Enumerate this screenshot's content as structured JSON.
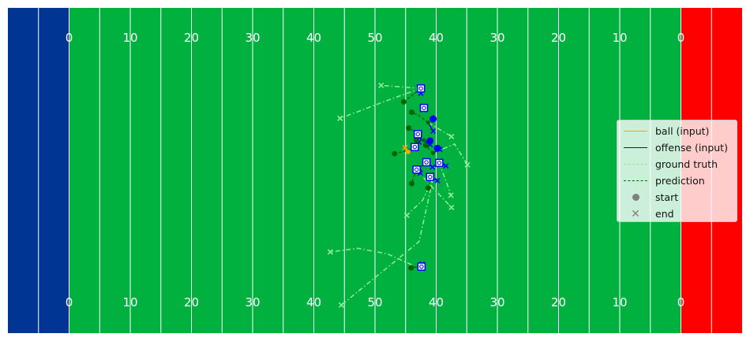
{
  "chart_data": {
    "type": "scatter",
    "title": "",
    "xlabel": "",
    "ylabel": "",
    "xlim": [
      -10,
      110
    ],
    "ylim": [
      0,
      53.3
    ],
    "grid": false,
    "legend_position": "right",
    "field": {
      "left_endzone_color": "#003594",
      "right_endzone_color": "#ff0000",
      "field_color": "#00b140",
      "line_color": "#ffffff",
      "yard_numbers": [
        "0",
        "10",
        "20",
        "30",
        "40",
        "50",
        "40",
        "30",
        "20",
        "10",
        "0"
      ]
    },
    "legend": [
      {
        "label": "ball (input)",
        "kind": "line",
        "color": "#ffa500",
        "dash": "solid"
      },
      {
        "label": "offense (input)",
        "kind": "line",
        "color": "#0000ff",
        "dash": "solid"
      },
      {
        "label": "ground truth",
        "kind": "line",
        "color": "#90ee90",
        "dash": "dashdot"
      },
      {
        "label": "prediction",
        "kind": "line",
        "color": "#006400",
        "dash": "dashed"
      },
      {
        "label": "start",
        "kind": "dot",
        "color": "#808080"
      },
      {
        "label": "end",
        "kind": "x",
        "color": "#808080"
      }
    ],
    "ball_input": [
      [
        55.4,
        29.7
      ],
      [
        55.1,
        30.0
      ],
      [
        54.9,
        30.4
      ]
    ],
    "offense_input": [
      {
        "start": [
          57.5,
          40.1
        ],
        "end": [
          57.5,
          39.3
        ]
      },
      {
        "start": [
          58.7,
          34.5
        ],
        "end": [
          59.5,
          33.1
        ]
      },
      {
        "start": [
          57.0,
          32.6
        ],
        "end": [
          57.3,
          32.0
        ]
      },
      {
        "start": [
          56.5,
          30.5
        ],
        "end": [
          57.2,
          31.3
        ]
      },
      {
        "start": [
          58.4,
          28.0
        ],
        "end": [
          59.4,
          27.2
        ]
      },
      {
        "start": [
          59.5,
          29.5
        ],
        "end": [
          60.6,
          30.1
        ]
      },
      {
        "start": [
          60.5,
          27.9
        ],
        "end": [
          61.6,
          27.4
        ]
      },
      {
        "start": [
          56.8,
          26.8
        ],
        "end": [
          57.4,
          26.2
        ]
      },
      {
        "start": [
          59.0,
          25.6
        ],
        "end": [
          60.2,
          25.0
        ]
      },
      {
        "start": [
          58.0,
          31.6
        ],
        "end": [
          59.0,
          30.9
        ]
      },
      {
        "start": [
          57.6,
          10.9
        ],
        "end": [
          57.7,
          11.3
        ]
      }
    ],
    "ground_truth": [
      {
        "points": [
          [
            57.5,
            40.1
          ],
          [
            53.0,
            38.5
          ],
          [
            44.3,
            35.2
          ]
        ]
      },
      {
        "points": [
          [
            57.5,
            40.1
          ],
          [
            51.0,
            40.6
          ]
        ]
      },
      {
        "points": [
          [
            59.5,
            29.5
          ],
          [
            63.0,
            31.0
          ],
          [
            65.1,
            27.6
          ]
        ]
      },
      {
        "points": [
          [
            58.7,
            34.5
          ],
          [
            62.5,
            32.2
          ]
        ]
      },
      {
        "points": [
          [
            59.5,
            25.4
          ],
          [
            57.8,
            21.8
          ],
          [
            55.2,
            19.3
          ]
        ]
      },
      {
        "points": [
          [
            59.5,
            25.4
          ],
          [
            57.2,
            15.0
          ],
          [
            44.5,
            4.6
          ]
        ]
      },
      {
        "points": [
          [
            56.8,
            26.8
          ],
          [
            58.7,
            24.6
          ],
          [
            62.5,
            20.6
          ]
        ]
      },
      {
        "points": [
          [
            60.5,
            27.9
          ],
          [
            62.0,
            23.8
          ],
          [
            62.4,
            22.6
          ]
        ]
      },
      {
        "points": [
          [
            56.0,
            11.2
          ],
          [
            52.0,
            13.0
          ],
          [
            47.2,
            13.9
          ],
          [
            42.7,
            13.3
          ]
        ]
      }
    ],
    "prediction": [
      {
        "points": [
          [
            57.5,
            40.1
          ],
          [
            55.6,
            38.6
          ],
          [
            54.7,
            37.9
          ]
        ]
      },
      {
        "points": [
          [
            58.7,
            34.5
          ],
          [
            57.1,
            35.7
          ],
          [
            56.0,
            36.2
          ]
        ]
      },
      {
        "points": [
          [
            57.0,
            32.6
          ],
          [
            56.1,
            33.3
          ],
          [
            55.5,
            33.6
          ]
        ]
      },
      {
        "points": [
          [
            56.5,
            30.5
          ],
          [
            54.8,
            29.8
          ],
          [
            53.2,
            29.4
          ]
        ]
      },
      {
        "points": [
          [
            58.4,
            28.0
          ],
          [
            57.5,
            27.3
          ],
          [
            57.2,
            26.7
          ]
        ]
      },
      {
        "points": [
          [
            59.5,
            29.5
          ],
          [
            58.6,
            30.4
          ],
          [
            58.3,
            30.8
          ]
        ]
      },
      {
        "points": [
          [
            56.8,
            26.8
          ],
          [
            56.3,
            25.5
          ],
          [
            56.0,
            24.5
          ]
        ]
      },
      {
        "points": [
          [
            59.0,
            25.6
          ],
          [
            58.9,
            24.8
          ],
          [
            58.7,
            23.8
          ]
        ]
      },
      {
        "points": [
          [
            58.0,
            31.6
          ],
          [
            56.8,
            31.6
          ]
        ]
      },
      {
        "points": [
          [
            57.6,
            10.9
          ],
          [
            56.4,
            10.8
          ],
          [
            55.9,
            10.7
          ]
        ]
      }
    ],
    "offense_markers": [
      [
        57.5,
        40.1
      ],
      [
        58.0,
        36.9
      ],
      [
        57.0,
        32.6
      ],
      [
        56.5,
        30.5
      ],
      [
        58.4,
        28.0
      ],
      [
        56.8,
        26.8
      ],
      [
        59.0,
        25.6
      ],
      [
        57.6,
        10.9
      ],
      [
        60.5,
        27.9
      ]
    ],
    "extra_points": [
      [
        59.5,
        35.1
      ],
      [
        60.2,
        30.3
      ],
      [
        59.0,
        31.5
      ]
    ]
  }
}
